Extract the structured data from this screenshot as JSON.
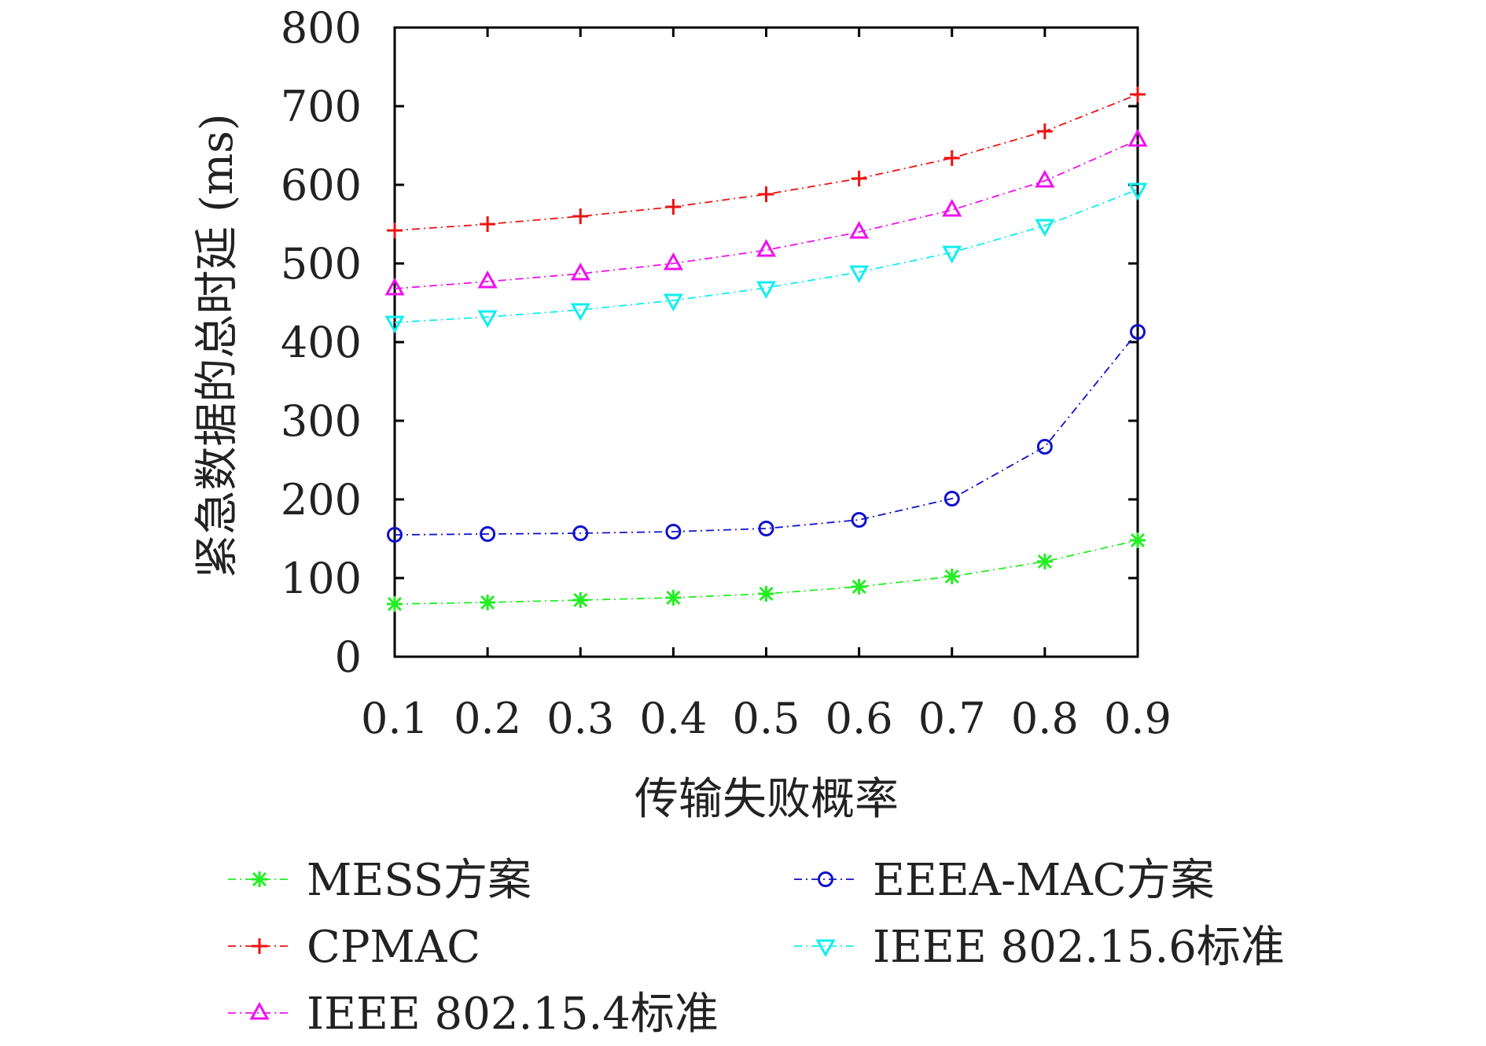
{
  "chart_data": {
    "type": "line",
    "title": "",
    "xlabel": "传输失败概率",
    "ylabel": "紧急数据的总时延 (ms)",
    "x": [
      0.1,
      0.2,
      0.3,
      0.4,
      0.5,
      0.6,
      0.7,
      0.8,
      0.9
    ],
    "x_tick_labels": [
      "0.1",
      "0.2",
      "0.3",
      "0.4",
      "0.5",
      "0.6",
      "0.7",
      "0.8",
      "0.9"
    ],
    "xlim": [
      0.1,
      0.9
    ],
    "ylim": [
      0,
      800
    ],
    "y_ticks": [
      0,
      100,
      200,
      300,
      400,
      500,
      600,
      700,
      800
    ],
    "y_tick_labels": [
      "0",
      "100",
      "200",
      "300",
      "400",
      "500",
      "600",
      "700",
      "800"
    ],
    "grid": false,
    "legend_position": "bottom",
    "series": [
      {
        "name": "MESS方案",
        "color": "#22ee22",
        "marker": "asterisk",
        "values": [
          67,
          69,
          72,
          75,
          80,
          89,
          102,
          121,
          148
        ]
      },
      {
        "name": "CPMAC",
        "color": "#ee1111",
        "marker": "plus",
        "values": [
          542,
          550,
          560,
          572,
          588,
          608,
          634,
          668,
          715
        ]
      },
      {
        "name": "IEEE 802.15.4标准",
        "color": "#ee11ee",
        "marker": "triangle-up",
        "values": [
          468,
          477,
          487,
          500,
          517,
          540,
          568,
          605,
          657
        ]
      },
      {
        "name": "EEEA-MAC方案",
        "color": "#1111cc",
        "marker": "circle",
        "values": [
          155,
          156,
          157,
          159,
          163,
          174,
          201,
          267,
          413
        ]
      },
      {
        "name": "IEEE 802.15.6标准",
        "color": "#11eeee",
        "marker": "triangle-down",
        "values": [
          425,
          432,
          441,
          453,
          469,
          489,
          514,
          548,
          594
        ]
      }
    ]
  }
}
